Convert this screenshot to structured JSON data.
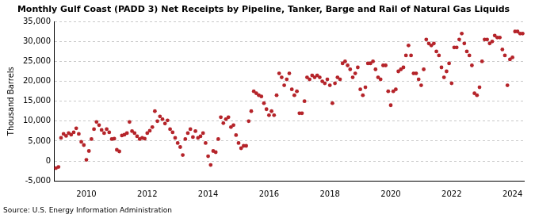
{
  "chart_data": {
    "type": "scatter",
    "title": "Monthly Gulf Coast (PADD 3) Net Receipts by Pipeline, Tanker, Barge and Rail of Natural Gas Liquids",
    "y_label": "Thousand Barrels",
    "source": "Source: U.S. Energy Information Administration",
    "color": "#b5242a",
    "marker": "circle",
    "grid": true,
    "ylim": [
      -5000,
      35000
    ],
    "yticks": [
      {
        "value": -5000,
        "label": "-5,000"
      },
      0,
      {
        "value": 5000,
        "label": "5,000"
      },
      {
        "value": 10000,
        "label": "10,000"
      },
      {
        "value": 15000,
        "label": "15,000"
      },
      {
        "value": 20000,
        "label": "20,000"
      },
      {
        "value": 25000,
        "label": "25,000"
      },
      {
        "value": 30000,
        "label": "30,000"
      },
      {
        "value": 35000,
        "label": "35,000"
      }
    ],
    "categories": [
      null,
      null,
      null,
      null,
      null,
      null,
      null,
      null,
      null,
      null,
      null,
      null,
      "2010",
      null,
      null,
      null,
      null,
      null,
      null,
      null,
      null,
      null,
      null,
      null,
      null,
      null,
      null,
      null,
      null,
      null,
      null,
      null,
      null,
      null,
      null,
      null,
      "2012",
      null,
      null,
      null,
      null,
      null,
      null,
      null,
      null,
      null,
      null,
      null,
      null,
      null,
      null,
      null,
      null,
      null,
      null,
      null,
      null,
      null,
      null,
      null,
      "2014",
      null,
      null,
      null,
      null,
      null,
      null,
      null,
      null,
      null,
      null,
      null,
      null,
      null,
      null,
      null,
      null,
      null,
      null,
      null,
      null,
      null,
      null,
      null,
      "2016",
      null,
      null,
      null,
      null,
      null,
      null,
      null,
      null,
      null,
      null,
      null,
      null,
      null,
      null,
      null,
      null,
      null,
      null,
      null,
      null,
      null,
      null,
      null,
      "2018",
      null,
      null,
      null,
      null,
      null,
      null,
      null,
      null,
      null,
      null,
      null,
      null,
      null,
      null,
      null,
      null,
      null,
      null,
      null,
      null,
      null,
      null,
      null,
      "2020",
      null,
      null,
      null,
      null,
      null,
      null,
      null,
      null,
      null,
      null,
      null,
      null,
      null,
      null,
      null,
      null,
      null,
      null,
      null,
      null,
      null,
      null,
      null,
      "2022",
      null,
      null,
      null,
      null,
      null,
      null,
      null,
      null,
      null,
      null,
      null,
      null,
      null,
      null,
      null,
      null,
      null,
      null,
      null,
      null,
      null,
      null,
      null,
      "2024",
      null,
      null,
      null,
      null
    ],
    "values": [
      -1800,
      -1500,
      5800,
      6800,
      6300,
      7000,
      6600,
      7200,
      8200,
      6800,
      4800,
      4000,
      300,
      2500,
      5500,
      8000,
      9800,
      9000,
      7800,
      7000,
      8000,
      7200,
      5500,
      5600,
      2800,
      2400,
      6400,
      6600,
      7000,
      9800,
      7500,
      7000,
      6200,
      5500,
      5800,
      5600,
      7000,
      7600,
      8500,
      12500,
      10000,
      11200,
      10500,
      9400,
      10200,
      8000,
      7200,
      5800,
      4500,
      3500,
      1500,
      5500,
      7000,
      8000,
      6000,
      7500,
      5800,
      6200,
      7000,
      4500,
      1200,
      -1000,
      2500,
      2200,
      5500,
      11000,
      9500,
      10500,
      11000,
      8500,
      9000,
      6500,
      4500,
      3200,
      3800,
      3800,
      10000,
      12500,
      17500,
      17000,
      16500,
      16200,
      14500,
      13000,
      11500,
      12500,
      11500,
      16500,
      22000,
      21000,
      19000,
      20500,
      22000,
      18000,
      16500,
      17500,
      12000,
      12000,
      15000,
      21000,
      20500,
      21500,
      21000,
      21500,
      21000,
      20000,
      19500,
      20500,
      19000,
      14500,
      19500,
      21000,
      20500,
      24500,
      25000,
      24000,
      23000,
      21000,
      22000,
      23500,
      18000,
      16500,
      18500,
      24500,
      24500,
      25000,
      23000,
      21000,
      20500,
      24000,
      24000,
      17500,
      14000,
      17500,
      18000,
      22500,
      23000,
      23500,
      26500,
      29000,
      26500,
      22000,
      22000,
      20500,
      19000,
      23000,
      30500,
      29500,
      29000,
      29500,
      27500,
      26500,
      23500,
      21000,
      22500,
      24500,
      19500,
      28500,
      28500,
      30500,
      32000,
      29500,
      27500,
      26500,
      24000,
      17000,
      16500,
      18500,
      25000,
      30500,
      30500,
      29500,
      30000,
      31500,
      31000,
      31000,
      28000,
      26500,
      19000,
      25500,
      26000,
      32500,
      32500,
      32000,
      32000
    ]
  }
}
